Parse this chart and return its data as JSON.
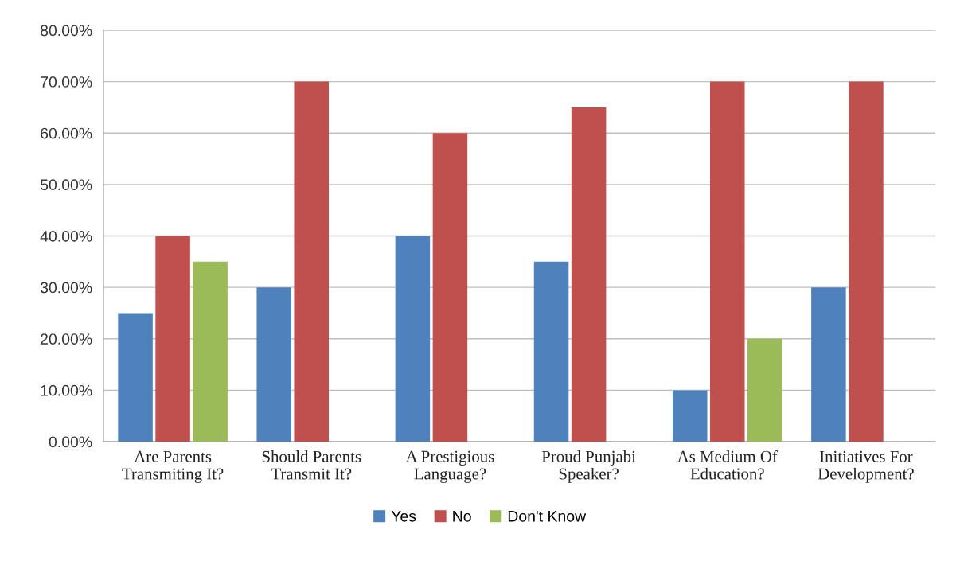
{
  "chart_data": {
    "type": "bar",
    "categories": [
      "Are Parents\nTransmiting It?",
      "Should Parents\nTransmit It?",
      "A Prestigious\nLanguage?",
      "Proud Punjabi\nSpeaker?",
      "As Medium Of\nEducation?",
      "Initiatives For\nDevelopment?"
    ],
    "series": [
      {
        "name": "Yes",
        "color": "#4f81bd",
        "values": [
          25,
          30,
          40,
          35,
          10,
          30
        ]
      },
      {
        "name": "No",
        "color": "#c0504d",
        "values": [
          40,
          70,
          60,
          65,
          70,
          70
        ]
      },
      {
        "name": "Don't Know",
        "color": "#9bbb59",
        "values": [
          35,
          null,
          null,
          null,
          20,
          null
        ]
      }
    ],
    "ylim": [
      0,
      80
    ],
    "yticks": [
      {
        "value": 0,
        "label": "0.00%"
      },
      {
        "value": 10,
        "label": "10.00%"
      },
      {
        "value": 20,
        "label": "20.00%"
      },
      {
        "value": 30,
        "label": "30.00%"
      },
      {
        "value": 40,
        "label": "40.00%"
      },
      {
        "value": 50,
        "label": "50.00%"
      },
      {
        "value": 60,
        "label": "60.00%"
      },
      {
        "value": 70,
        "label": "70.00%"
      },
      {
        "value": 80,
        "label": "80.00%"
      }
    ],
    "grid": "y",
    "legend": "bottom"
  }
}
